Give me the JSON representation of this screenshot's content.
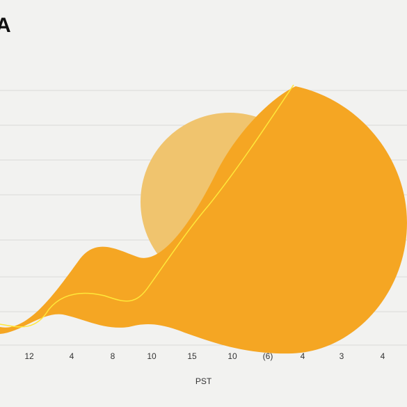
{
  "title_glyph": "A",
  "colors": {
    "background": "#f2f2f0",
    "grid": "#d9d9d9",
    "area_fill": "#f5a623",
    "circle_light": "#f0c46e",
    "highlight_line": "#ffe83a"
  },
  "chart_data": {
    "type": "area",
    "title": "",
    "xlabel": "PST",
    "ylabel": "",
    "grid": true,
    "legend": "none",
    "categories": [
      "12",
      "4",
      "8",
      "10",
      "15",
      "10",
      "(6)",
      "4",
      "3",
      "4"
    ],
    "series": [
      {
        "values": [
          1,
          2,
          4,
          2,
          3,
          6,
          8,
          9,
          9,
          8
        ]
      }
    ]
  }
}
